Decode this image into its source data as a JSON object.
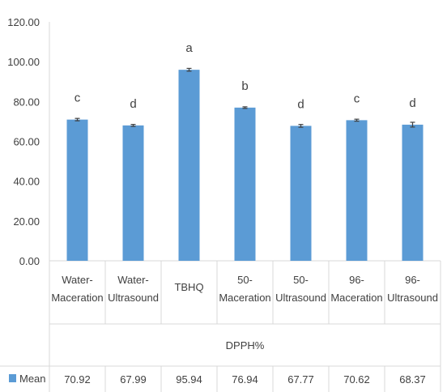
{
  "chart_data": {
    "type": "bar",
    "categories": [
      [
        "Water-",
        "Maceration"
      ],
      [
        "Water-",
        "Ultrasound"
      ],
      [
        "TBHQ"
      ],
      [
        "50-",
        "Maceration"
      ],
      [
        "50-",
        "Ultrasound"
      ],
      [
        "96-",
        "Maceration"
      ],
      [
        "96-",
        "Ultrasound"
      ]
    ],
    "group_label": "DPPH%",
    "series": [
      {
        "name": "Mean",
        "values": [
          70.92,
          67.99,
          95.94,
          76.94,
          67.77,
          70.62,
          68.37
        ],
        "value_labels": [
          "70.92",
          "67.99",
          "95.94",
          "76.94",
          "67.77",
          "70.62",
          "68.37"
        ],
        "errors": [
          0.6,
          0.5,
          0.7,
          0.4,
          0.7,
          0.5,
          1.2
        ],
        "color": "#5b9bd5"
      }
    ],
    "significance_letters": [
      "c",
      "d",
      "a",
      "b",
      "d",
      "c",
      "d"
    ],
    "ylim": [
      0,
      120
    ],
    "yticks": [
      "0.00",
      "20.00",
      "40.00",
      "60.00",
      "80.00",
      "100.00",
      "120.00"
    ],
    "title": "",
    "xlabel": "",
    "ylabel": "",
    "grid": false,
    "legend": "data-table-left",
    "colors": {
      "bar": "#5b9bd5",
      "error": "#404040",
      "axis": "#d9d9d9",
      "text": "#404040"
    }
  }
}
